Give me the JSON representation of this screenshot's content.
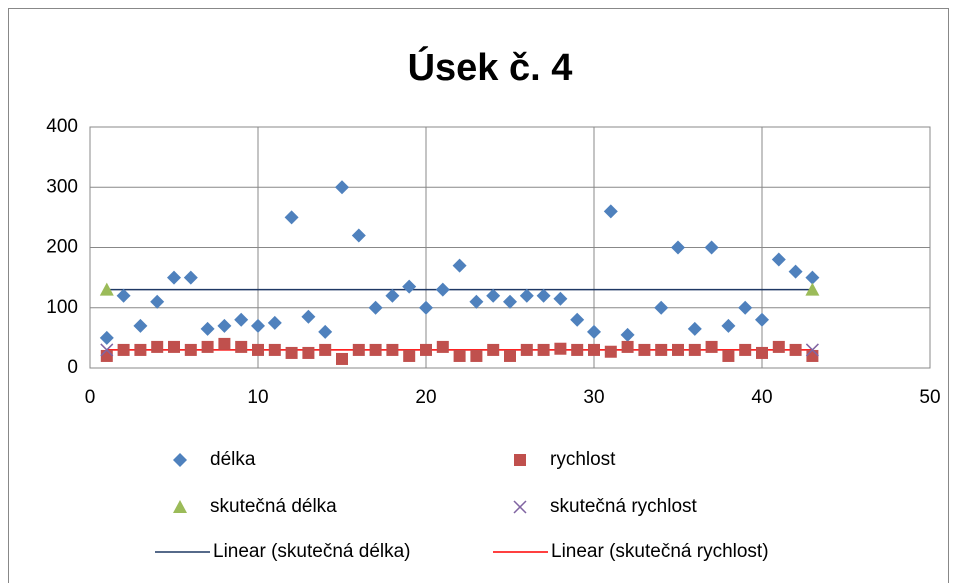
{
  "chart_data": {
    "type": "scatter",
    "title": "Úsek č. 4",
    "xlim": [
      0,
      50
    ],
    "xticks": [
      0,
      10,
      20,
      30,
      40,
      50
    ],
    "ylim": [
      0,
      400
    ],
    "yticks": [
      0,
      100,
      200,
      300,
      400
    ],
    "grid": true,
    "legend": "bottom",
    "series": [
      {
        "name": "délka",
        "color": "#4f81bd",
        "marker": "diamond",
        "x": [
          1,
          2,
          3,
          4,
          5,
          6,
          7,
          8,
          9,
          10,
          11,
          12,
          13,
          14,
          15,
          16,
          17,
          18,
          19,
          20,
          21,
          22,
          23,
          24,
          25,
          26,
          27,
          28,
          29,
          30,
          31,
          32,
          34,
          35,
          36,
          37,
          38,
          39,
          40,
          41,
          42,
          43
        ],
        "values": [
          50,
          120,
          70,
          110,
          150,
          150,
          65,
          70,
          80,
          70,
          75,
          250,
          85,
          60,
          300,
          220,
          100,
          120,
          135,
          100,
          130,
          170,
          110,
          120,
          110,
          120,
          120,
          115,
          80,
          60,
          260,
          55,
          100,
          200,
          65,
          200,
          70,
          100,
          80,
          180,
          160,
          150
        ]
      },
      {
        "name": "rychlost",
        "color": "#c0504d",
        "marker": "square",
        "x": [
          1,
          2,
          3,
          4,
          5,
          6,
          7,
          8,
          9,
          10,
          11,
          12,
          13,
          14,
          15,
          16,
          17,
          18,
          19,
          20,
          21,
          22,
          23,
          24,
          25,
          26,
          27,
          28,
          29,
          30,
          31,
          32,
          33,
          34,
          35,
          36,
          37,
          38,
          39,
          40,
          41,
          42,
          43
        ],
        "values": [
          20,
          30,
          30,
          35,
          35,
          30,
          35,
          40,
          35,
          30,
          30,
          25,
          25,
          30,
          15,
          30,
          30,
          30,
          20,
          30,
          35,
          20,
          20,
          30,
          20,
          30,
          30,
          32,
          30,
          30,
          27,
          35,
          30,
          30,
          30,
          30,
          35,
          20,
          30,
          25,
          35,
          30,
          20
        ]
      },
      {
        "name": "skutečná délka",
        "color": "#9bbb59",
        "marker": "triangle",
        "x": [
          1,
          43
        ],
        "values": [
          130,
          130
        ],
        "trendline": {
          "name": "Linear (skutečná délka)",
          "color": "#1f3864"
        }
      },
      {
        "name": "skutečná rychlost",
        "color": "#8064a2",
        "marker": "cross",
        "x": [
          1,
          43
        ],
        "values": [
          30,
          30
        ],
        "trendline": {
          "name": "Linear (skutečná rychlost)",
          "color": "#ff0000"
        }
      }
    ]
  }
}
